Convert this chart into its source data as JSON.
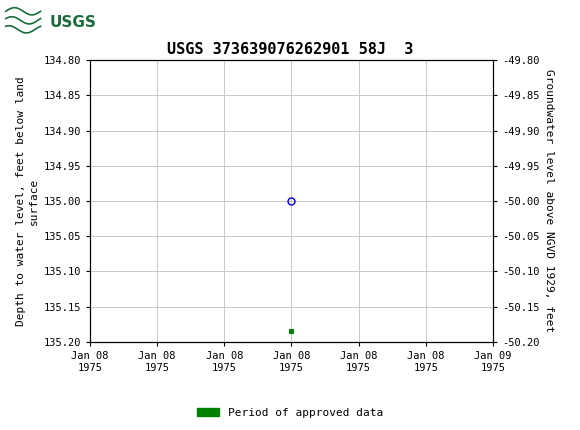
{
  "title": "USGS 373639076262901 58J  3",
  "ylabel_left": "Depth to water level, feet below land\nsurface",
  "ylabel_right": "Groundwater level above NGVD 1929, feet",
  "ylim_left": [
    135.2,
    134.8
  ],
  "ylim_right": [
    -50.2,
    -49.8
  ],
  "yticks_left": [
    134.8,
    134.85,
    134.9,
    134.95,
    135.0,
    135.05,
    135.1,
    135.15,
    135.2
  ],
  "yticks_right": [
    -49.8,
    -49.85,
    -49.9,
    -49.95,
    -50.0,
    -50.05,
    -50.1,
    -50.15,
    -50.2
  ],
  "ytick_labels_left": [
    "134.80",
    "134.85",
    "134.90",
    "134.95",
    "135.00",
    "135.05",
    "135.10",
    "135.15",
    "135.20"
  ],
  "ytick_labels_right": [
    "-49.80",
    "-49.85",
    "-49.90",
    "-49.95",
    "-50.00",
    "-50.05",
    "-50.10",
    "-50.15",
    "-50.20"
  ],
  "data_point_x_num": 3,
  "data_point_y": 135.0,
  "green_point_x_num": 3,
  "green_point_y": 135.185,
  "xtick_labels": [
    "Jan 08\n1975",
    "Jan 08\n1975",
    "Jan 08\n1975",
    "Jan 08\n1975",
    "Jan 08\n1975",
    "Jan 08\n1975",
    "Jan 09\n1975"
  ],
  "xlim": [
    0,
    6
  ],
  "xtick_positions": [
    0,
    1,
    2,
    3,
    4,
    5,
    6
  ],
  "header_color": "#1b6b3a",
  "background_color": "#ffffff",
  "plot_bg_color": "#ffffff",
  "grid_color": "#c8c8c8",
  "circle_color": "#0000cc",
  "green_color": "#008000",
  "title_fontsize": 11,
  "axis_label_fontsize": 8,
  "tick_fontsize": 7.5,
  "legend_label": "Period of approved data",
  "legend_fontsize": 8
}
